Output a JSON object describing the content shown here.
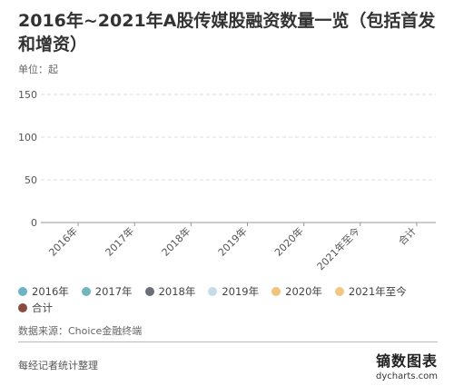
{
  "title": "2016年~2021年A股传媒股融资数量一览（包括首发和增资）",
  "unit": "单位：起",
  "chart_data": {
    "type": "bar",
    "categories": [
      "2016年",
      "2017年",
      "2018年",
      "2019年",
      "2020年",
      "2021年至今",
      "合计"
    ],
    "y_ticks": [
      "150",
      "100",
      "50",
      "0"
    ],
    "ylim": [
      0,
      150
    ],
    "grid": true,
    "legend_placement": "bottom",
    "series": [
      {
        "name": "2016年",
        "color": "#6bb3c6",
        "values": [
          null,
          null,
          null,
          null,
          null,
          null,
          null
        ]
      },
      {
        "name": "2017年",
        "color": "#6fb6c0",
        "values": [
          null,
          null,
          null,
          null,
          null,
          null,
          null
        ]
      },
      {
        "name": "2018年",
        "color": "#6b6f78",
        "values": [
          null,
          null,
          null,
          null,
          null,
          null,
          null
        ]
      },
      {
        "name": "2019年",
        "color": "#c5dce9",
        "values": [
          null,
          null,
          null,
          null,
          null,
          null,
          null
        ]
      },
      {
        "name": "2020年",
        "color": "#f0c47a",
        "values": [
          null,
          null,
          null,
          null,
          null,
          null,
          null
        ]
      },
      {
        "name": "2021年至今",
        "color": "#f3c682",
        "values": [
          null,
          null,
          null,
          null,
          null,
          null,
          null
        ]
      },
      {
        "name": "合计",
        "color": "#8c4a3f",
        "values": [
          null,
          null,
          null,
          null,
          null,
          null,
          null
        ]
      }
    ]
  },
  "source": "数据来源：Choice金融终端",
  "footer_left": "每经记者统计整理",
  "brand": {
    "name": "镝数图表",
    "url": "dycharts.com"
  }
}
